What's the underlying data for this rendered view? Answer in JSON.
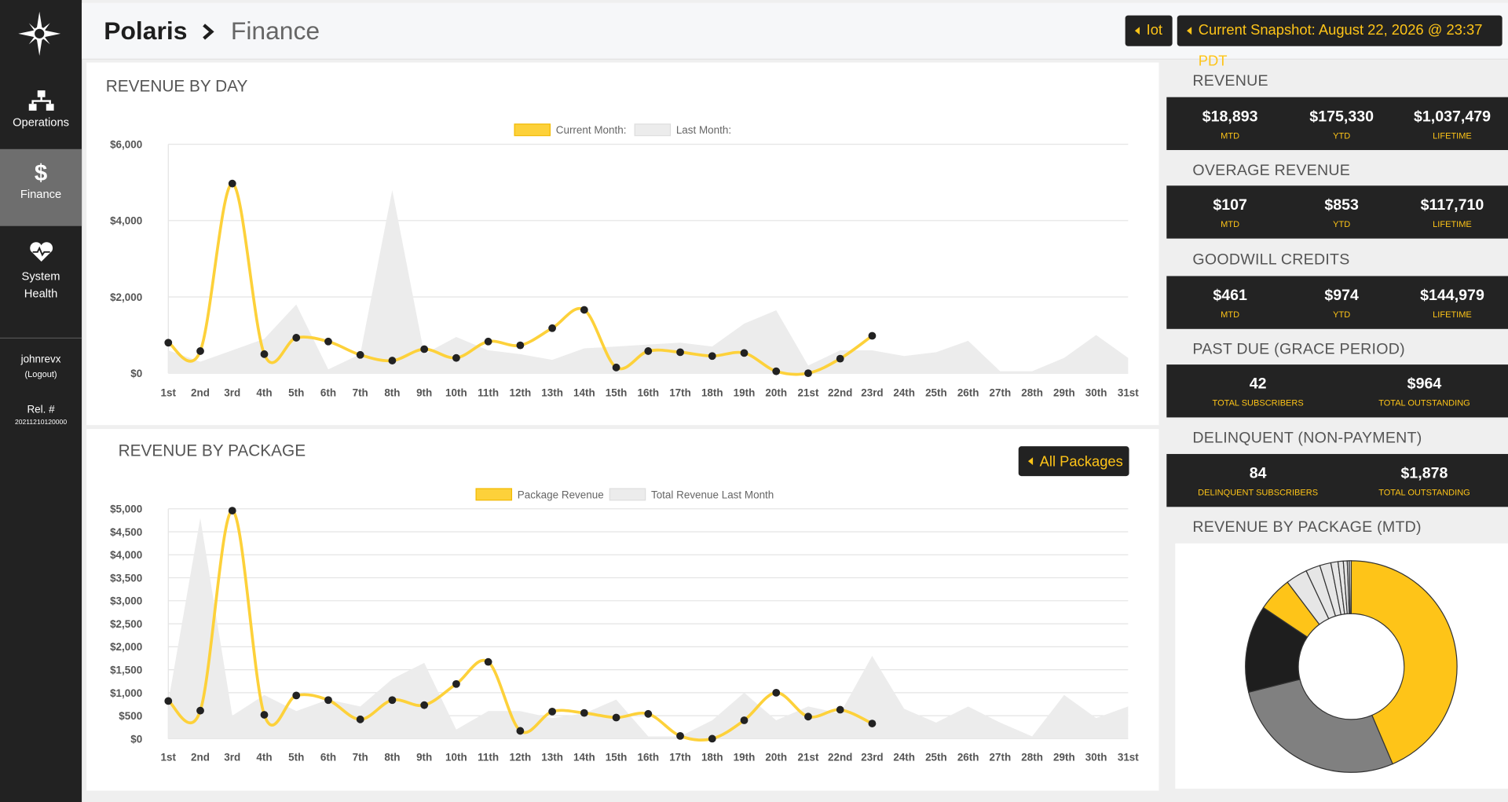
{
  "sidebar": {
    "nav": [
      "Operations",
      "Finance",
      "System Health"
    ],
    "active": 1,
    "user": "johnrevx",
    "logout": "(Logout)",
    "release_label": "Rel. #",
    "release": "20211210120000"
  },
  "header": {
    "brand": "Polaris",
    "page": "Finance",
    "buttons": [
      "Iot",
      "Current Snapshot: August 22, 2026 @ 23:37 PDT"
    ]
  },
  "stats": [
    {
      "title": "REVENUE",
      "items": [
        {
          "value": "$18,893",
          "label": "MTD"
        },
        {
          "value": "$175,330",
          "label": "YTD"
        },
        {
          "value": "$1,037,479",
          "label": "LIFETIME"
        }
      ]
    },
    {
      "title": "OVERAGE REVENUE",
      "items": [
        {
          "value": "$107",
          "label": "MTD"
        },
        {
          "value": "$853",
          "label": "YTD"
        },
        {
          "value": "$117,710",
          "label": "LIFETIME"
        }
      ]
    },
    {
      "title": "GOODWILL CREDITS",
      "items": [
        {
          "value": "$461",
          "label": "MTD"
        },
        {
          "value": "$974",
          "label": "YTD"
        },
        {
          "value": "$144,979",
          "label": "LIFETIME"
        }
      ]
    },
    {
      "title": "PAST DUE (GRACE PERIOD)",
      "items": [
        {
          "value": "42",
          "label": "TOTAL SUBSCRIBERS"
        },
        {
          "value": "$964",
          "label": "TOTAL OUTSTANDING"
        }
      ]
    },
    {
      "title": "DELINQUENT (NON-PAYMENT)",
      "items": [
        {
          "value": "84",
          "label": "DELINQUENT SUBSCRIBERS"
        },
        {
          "value": "$1,878",
          "label": "TOTAL OUTSTANDING"
        }
      ]
    }
  ],
  "chart_data": [
    {
      "type": "line",
      "title": "REVENUE BY DAY",
      "categories": [
        "1st",
        "2nd",
        "3rd",
        "4th",
        "5th",
        "6th",
        "7th",
        "8th",
        "9th",
        "10th",
        "11th",
        "12th",
        "13th",
        "14th",
        "15th",
        "16th",
        "17th",
        "18th",
        "19th",
        "20th",
        "21st",
        "22nd",
        "23rd",
        "24th",
        "25th",
        "26th",
        "27th",
        "28th",
        "29th",
        "30th",
        "31st"
      ],
      "series": [
        {
          "name": "Current Month:",
          "color": "#fdd13a",
          "smooth": true,
          "markers": true,
          "values": [
            800,
            580,
            4970,
            500,
            930,
            830,
            480,
            330,
            630,
            400,
            830,
            730,
            1180,
            1660,
            150,
            580,
            550,
            450,
            530,
            50,
            0,
            380,
            980,
            null,
            null,
            null,
            null,
            null,
            null,
            null,
            null
          ]
        },
        {
          "name": "Last Month:",
          "color": "#ececec",
          "area": true,
          "values": [
            600,
            300,
            600,
            900,
            1800,
            100,
            500,
            4800,
            500,
            950,
            600,
            500,
            350,
            650,
            700,
            750,
            800,
            700,
            1300,
            1650,
            200,
            600,
            600,
            450,
            550,
            850,
            50,
            50,
            400,
            1000,
            400
          ]
        }
      ],
      "ylim": [
        0,
        6000
      ],
      "yticks": [
        {
          "value": 0,
          "label": "$0"
        },
        {
          "value": 2000,
          "label": "$2,000"
        },
        {
          "value": 4000,
          "label": "$4,000"
        },
        {
          "value": 6000,
          "label": "$6,000"
        }
      ],
      "grid": true
    },
    {
      "type": "line",
      "title": "REVENUE BY PACKAGE",
      "package_filter": "All Packages",
      "categories": [
        "1st",
        "2nd",
        "3rd",
        "4th",
        "5th",
        "6th",
        "7th",
        "8th",
        "9th",
        "10th",
        "11th",
        "12th",
        "13th",
        "14th",
        "15th",
        "16th",
        "17th",
        "18th",
        "19th",
        "20th",
        "21st",
        "22nd",
        "23rd",
        "24th",
        "25th",
        "26th",
        "27th",
        "28th",
        "29th",
        "30th",
        "31st"
      ],
      "series": [
        {
          "name": "Package Revenue",
          "color": "#fdd13a",
          "smooth": true,
          "markers": true,
          "values": [
            820,
            610,
            4960,
            520,
            940,
            840,
            420,
            840,
            730,
            1190,
            1670,
            170,
            590,
            560,
            460,
            540,
            60,
            0,
            400,
            1000,
            480,
            630,
            330,
            null,
            null,
            null,
            null,
            null,
            null,
            null,
            null
          ]
        },
        {
          "name": "Total Revenue Last Month",
          "color": "#ececec",
          "area": true,
          "values": [
            800,
            4800,
            500,
            950,
            600,
            850,
            700,
            1300,
            1650,
            200,
            600,
            600,
            450,
            550,
            850,
            50,
            50,
            400,
            1000,
            400,
            700,
            550,
            1800,
            650,
            350,
            700,
            350,
            50,
            950,
            450,
            700
          ]
        }
      ],
      "ylim": [
        0,
        5000
      ],
      "yticks": [
        {
          "value": 0,
          "label": "$0"
        },
        {
          "value": 500,
          "label": "$500"
        },
        {
          "value": 1000,
          "label": "$1,000"
        },
        {
          "value": 1500,
          "label": "$1,500"
        },
        {
          "value": 2000,
          "label": "$2,000"
        },
        {
          "value": 2500,
          "label": "$2,500"
        },
        {
          "value": 3000,
          "label": "$3,000"
        },
        {
          "value": 3500,
          "label": "$3,500"
        },
        {
          "value": 4000,
          "label": "$4,000"
        },
        {
          "value": 4500,
          "label": "$4,500"
        },
        {
          "value": 5000,
          "label": "$5,000"
        }
      ],
      "grid": true
    },
    {
      "type": "pie",
      "donut": true,
      "title": "REVENUE BY PACKAGE (MTD)",
      "values": [
        43.6,
        27.5,
        13.3,
        5.3,
        3.3,
        2.2,
        1.7,
        1.1,
        0.8,
        0.6,
        0.3,
        0.3
      ],
      "colors": [
        "#fec418",
        "#808080",
        "#1e1e1e",
        "#fec418",
        "#e6e6e6",
        "#e6e6e6",
        "#e6e6e6",
        "#e6e6e6",
        "#e6e6e6",
        "#e6e6e6",
        "#e6e6e6",
        "#e6e6e6"
      ]
    }
  ]
}
